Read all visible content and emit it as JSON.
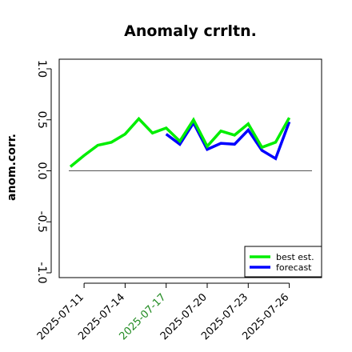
{
  "chart_data": {
    "type": "line",
    "title": "Anomaly crrltn.",
    "xlabel": "",
    "ylabel": "anom.corr.",
    "ylim": [
      -1.0,
      1.0
    ],
    "yticks": [
      "-1.0",
      "-0.5",
      "0.0",
      "0.5",
      "1.0"
    ],
    "ytick_values": [
      -1.0,
      -0.5,
      0.0,
      0.5,
      1.0
    ],
    "x": [
      "2025-07-10",
      "2025-07-11",
      "2025-07-12",
      "2025-07-13",
      "2025-07-14",
      "2025-07-15",
      "2025-07-16",
      "2025-07-17",
      "2025-07-18",
      "2025-07-19",
      "2025-07-20",
      "2025-07-21",
      "2025-07-22",
      "2025-07-23",
      "2025-07-24",
      "2025-07-25",
      "2025-07-26"
    ],
    "xticks": [
      {
        "label": "2025-07-11",
        "color": "#000000"
      },
      {
        "label": "2025-07-14",
        "color": "#000000"
      },
      {
        "label": "2025-07-17",
        "color": "#228B22"
      },
      {
        "label": "2025-07-20",
        "color": "#000000"
      },
      {
        "label": "2025-07-23",
        "color": "#000000"
      },
      {
        "label": "2025-07-26",
        "color": "#000000"
      }
    ],
    "reference_line": 0.0,
    "series": [
      {
        "name": "best est.",
        "color": "#00ee00",
        "values": [
          0.04,
          0.15,
          0.25,
          0.28,
          0.36,
          0.51,
          0.37,
          0.42,
          0.29,
          0.5,
          0.24,
          0.39,
          0.35,
          0.46,
          0.23,
          0.28,
          0.52
        ]
      },
      {
        "name": "forecast",
        "color": "#0000ff",
        "values": [
          null,
          null,
          null,
          null,
          null,
          null,
          null,
          0.36,
          0.26,
          0.47,
          0.21,
          0.27,
          0.26,
          0.4,
          0.2,
          0.12,
          0.48
        ]
      }
    ],
    "legend_position": "bottom-right",
    "grid": false
  }
}
